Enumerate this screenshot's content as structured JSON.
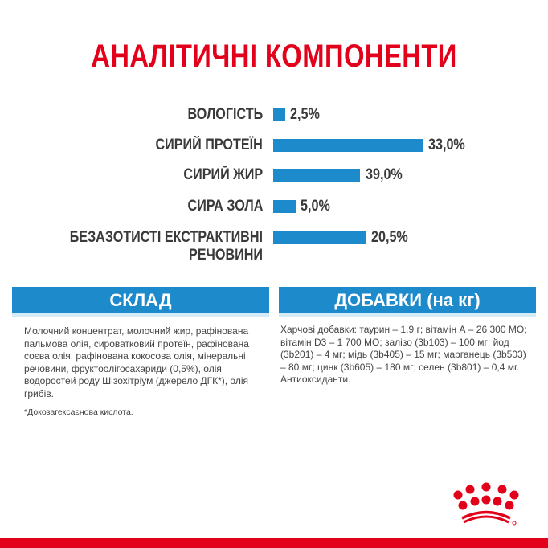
{
  "title": "АНАЛІТИЧНІ КОМПОНЕНТИ",
  "chart_data": {
    "type": "bar",
    "orientation": "horizontal",
    "categories": [
      "ВОЛОГІСТЬ",
      "СИРИЙ ПРОТЕЇН",
      "СИРИЙ ЖИР",
      "СИРА ЗОЛА",
      "БЕЗАЗОТИСТІ ЕКСТРАКТИВНІ РЕЧОВИНИ"
    ],
    "values": [
      2.5,
      33.0,
      39.0,
      5.0,
      20.5
    ],
    "labels": [
      "2,5%",
      "33,0%",
      "39,0%",
      "5,0%",
      "20,5%"
    ],
    "color": "#1d8bcb"
  },
  "composition": {
    "header": "СКЛАД",
    "text": "Молочний концентрат, молочний жир, рафінована пальмова олія, сироватковий протеїн, рафінована соєва олія, рафінована кокосова олія, мінеральні речовини, фруктоолігосахариди (0,5%), олія водоростей роду Шізохітріум (джерело ДГК*), олія грибів.",
    "footnote": "*Докозагексаєнова кислота."
  },
  "additives": {
    "header": "ДОБАВКИ (на кг)",
    "text": "Харчові добавки: таурин – 1,9 г; вітамін А – 26 300 МО; вітамін D3 – 1 700 МО; залізо (3b103) – 100 мг; йод (3b201) – 4 мг; мідь (3b405) – 15 мг; марганець (3b503) – 80 мг; цинк (3b605) – 180 мг; селен (3b801) – 0,4 мг. Антиоксиданти."
  },
  "colors": {
    "brand_red": "#e2001a",
    "accent_blue": "#1d8bcb"
  }
}
